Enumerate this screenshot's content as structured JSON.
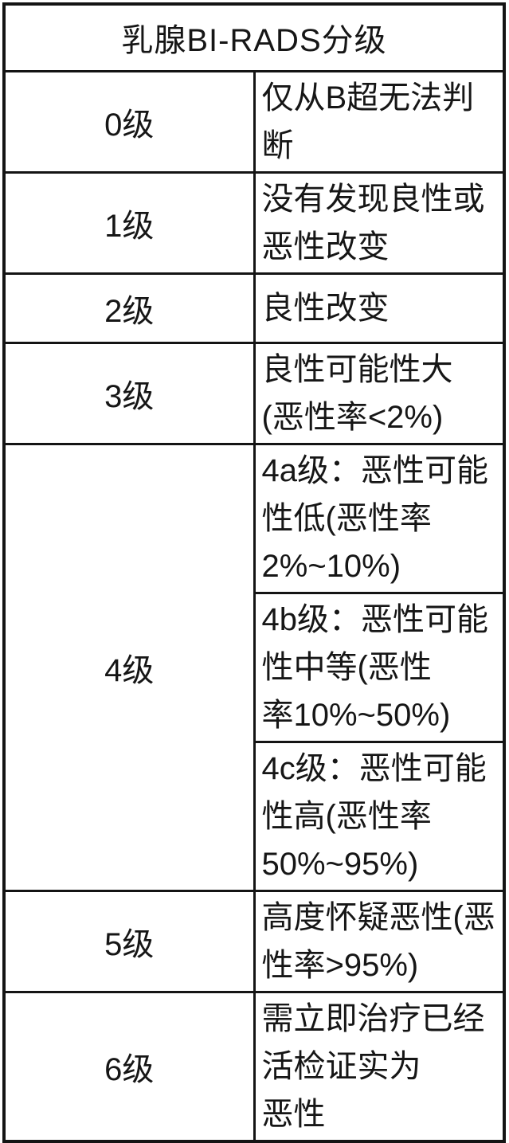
{
  "colors": {
    "background": "#ffffff",
    "border": "#141414",
    "text": "#161616"
  },
  "table": {
    "title": "乳腺BI-RADS分级",
    "columns": [
      "grade",
      "description"
    ],
    "rows": [
      {
        "grade": "0级",
        "desc": "仅从B超无法判断"
      },
      {
        "grade": "1级",
        "desc": "没有发现良性或恶性改变"
      },
      {
        "grade": "2级",
        "desc": "良性改变"
      },
      {
        "grade": "3级",
        "desc": "良性可能性大 (恶性率<2%)"
      },
      {
        "grade": "4级",
        "sub": [
          "4a级：恶性可能性低(恶性率\n2%~10%)",
          "4b级：恶性可能性中等(恶性\n率10%~50%)",
          "4c级：恶性可能性高(恶性率\n50%~95%)"
        ]
      },
      {
        "grade": "5级",
        "desc": "高度怀疑恶性(恶性率>95%)"
      },
      {
        "grade": "6级",
        "desc": "需立即治疗已经活检证实为\n恶性"
      }
    ]
  }
}
